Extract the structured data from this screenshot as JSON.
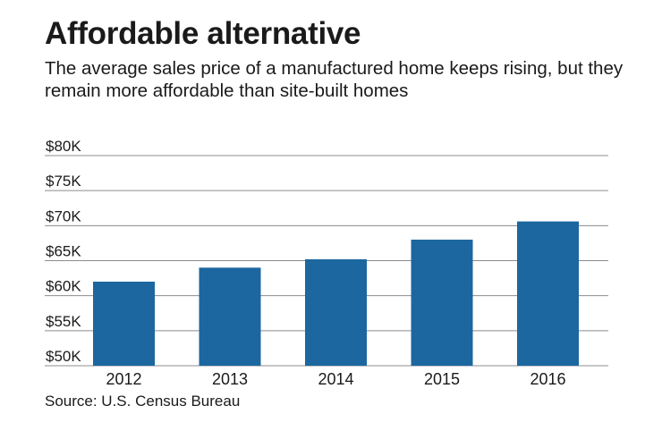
{
  "chart_data": {
    "type": "bar",
    "title": "Affordable alternative",
    "subtitle": "The average sales price of a manufactured home keeps rising, but they remain more affordable than site-built homes",
    "categories": [
      "2012",
      "2013",
      "2014",
      "2015",
      "2016"
    ],
    "values": [
      62000,
      64000,
      65200,
      68000,
      70600
    ],
    "ylim": [
      50000,
      80000
    ],
    "yticks": [
      {
        "value": 80000,
        "label": "$80K"
      },
      {
        "value": 75000,
        "label": "$75K"
      },
      {
        "value": 70000,
        "label": "$70K"
      },
      {
        "value": 65000,
        "label": "$65K"
      },
      {
        "value": 60000,
        "label": "$60K"
      },
      {
        "value": 55000,
        "label": "$55K"
      },
      {
        "value": 50000,
        "label": "$50K"
      }
    ],
    "xlabel": "",
    "ylabel": "",
    "grid": true,
    "source": "Source: U.S. Census Bureau",
    "bar_color": "#1c679f",
    "grid_color": "#8c8c8c"
  }
}
